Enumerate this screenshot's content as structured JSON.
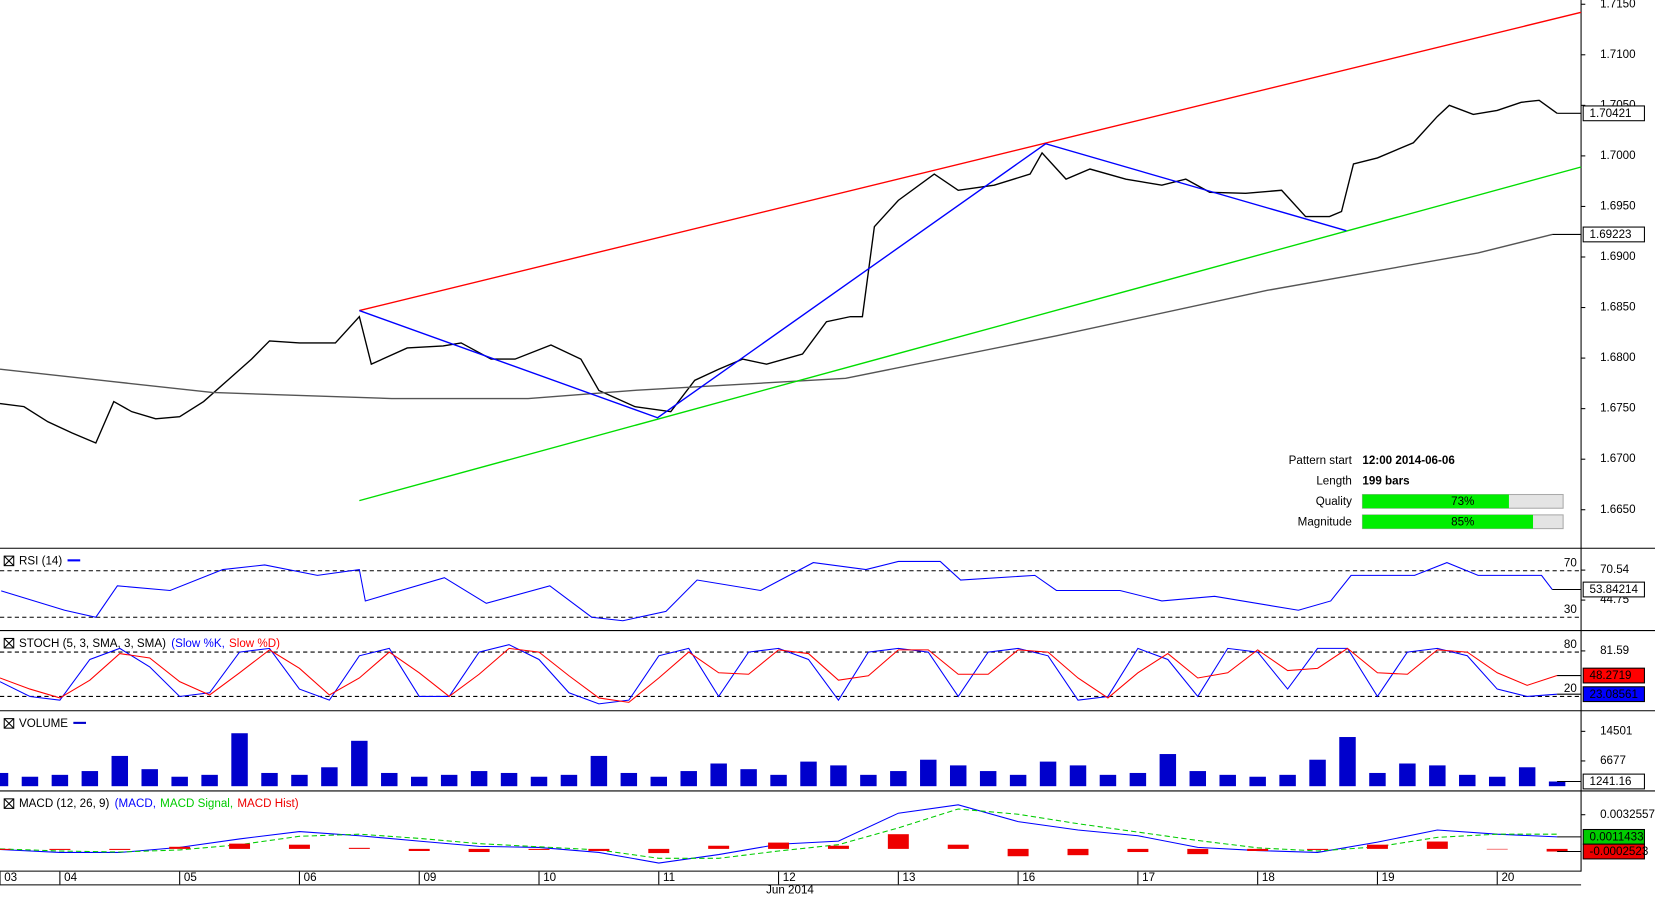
{
  "chart_data": [
    {
      "type": "line",
      "ylim": [
        1.66135,
        1.71542
      ],
      "yticks": [
        {
          "value": 1.665,
          "label": "1.6650"
        },
        {
          "value": 1.67,
          "label": "1.6700"
        },
        {
          "value": 1.675,
          "label": "1.6750"
        },
        {
          "value": 1.68,
          "label": "1.6800"
        },
        {
          "value": 1.685,
          "label": "1.6850"
        },
        {
          "value": 1.69,
          "label": "1.6900"
        },
        {
          "value": 1.695,
          "label": "1.6950"
        },
        {
          "value": 1.7,
          "label": "1.7000"
        },
        {
          "value": 1.705,
          "label": "1.7050"
        },
        {
          "value": 1.71,
          "label": "1.7100"
        },
        {
          "value": 1.715,
          "label": "1.7150"
        }
      ],
      "series": [
        {
          "color": "#000000",
          "style": "line",
          "show_last": "boxed",
          "x": [
            0.5,
            0.7,
            0.9,
            1.1,
            1.3,
            1.45,
            1.6,
            1.8,
            2.0,
            2.2,
            2.4,
            2.6,
            2.75,
            3.0,
            3.3,
            3.5,
            3.6,
            3.9,
            4.2,
            4.35,
            4.6,
            4.8,
            5.1,
            5.35,
            5.5,
            5.8,
            6.1,
            6.3,
            6.5,
            6.7,
            6.9,
            7.2,
            7.4,
            7.6,
            7.7,
            7.8,
            8.0,
            8.3,
            8.5,
            8.8,
            9.1,
            9.2,
            9.4,
            9.6,
            9.9,
            10.2,
            10.4,
            10.6,
            10.9,
            11.2,
            11.4,
            11.6,
            11.7,
            11.8,
            12.0,
            12.3,
            12.5,
            12.6,
            12.8,
            13.0,
            13.2,
            13.35,
            13.5
          ],
          "values": [
            1.6755,
            1.6752,
            1.6737,
            1.6726,
            1.6716,
            1.6757,
            1.6747,
            1.674,
            1.6742,
            1.6757,
            1.6778,
            1.6799,
            1.6817,
            1.6815,
            1.6815,
            1.6841,
            1.6794,
            1.681,
            1.6812,
            1.6815,
            1.6799,
            1.6799,
            1.6813,
            1.6799,
            1.6768,
            1.6752,
            1.6747,
            1.6778,
            1.6789,
            1.6799,
            1.6794,
            1.6804,
            1.6836,
            1.6841,
            1.6841,
            1.693,
            1.6956,
            1.6982,
            1.6966,
            1.6971,
            1.6982,
            1.7003,
            1.6977,
            1.6987,
            1.6977,
            1.6971,
            1.6977,
            1.6964,
            1.6963,
            1.6966,
            1.694,
            1.694,
            1.6945,
            1.6992,
            1.6998,
            1.7013,
            1.7039,
            1.705,
            1.7041,
            1.7045,
            1.7053,
            1.7055,
            1.70421
          ]
        },
        {
          "color": "#555555",
          "style": "line",
          "show_last": "boxed",
          "x": [
            0.5,
            2.27,
            3.77,
            4.91,
            5.79,
            7.56,
            9.32,
            11.08,
            12.84,
            13.46
          ],
          "values": [
            1.6789,
            1.6766,
            1.676,
            1.676,
            1.6768,
            1.678,
            1.6822,
            1.6867,
            1.6904,
            1.69223
          ]
        },
        {
          "color": "#ff0000",
          "style": "line",
          "x": [
            3.5,
            13.7
          ],
          "values": [
            1.6847,
            1.7142
          ]
        },
        {
          "color": "#00dd00",
          "style": "line",
          "x": [
            3.5,
            13.7
          ],
          "values": [
            1.6659,
            1.6989
          ]
        },
        {
          "color": "#0000ff",
          "style": "line",
          "x": [
            3.5,
            5.99,
            9.23,
            11.74
          ],
          "values": [
            1.6847,
            1.6741,
            1.7012,
            1.6926
          ]
        }
      ],
      "info": [
        {
          "label": "Pattern start",
          "value": "12:00 2014-06-06"
        },
        {
          "label": "Length",
          "value": "199 bars"
        },
        {
          "label": "Quality",
          "value": 73,
          "value_label": "73%"
        },
        {
          "label": "Magnitude",
          "value": 85,
          "value_label": "85%"
        }
      ]
    },
    {
      "type": "line",
      "title": "RSI (14)",
      "ylim": [
        19,
        88
      ],
      "yticks": [
        70.54,
        44.75
      ],
      "levels": [
        70,
        30
      ],
      "series": [
        {
          "color": "#0000ff",
          "style": "line",
          "show_last": "boxed",
          "x": [
            0.51,
            1.04,
            1.3,
            1.48,
            1.92,
            2.36,
            2.71,
            3.15,
            3.5,
            3.55,
            4.21,
            4.56,
            5.09,
            5.44,
            5.7,
            6.06,
            6.32,
            6.85,
            7.29,
            7.73,
            8.0,
            8.35,
            8.52,
            9.14,
            9.32,
            9.85,
            10.2,
            10.64,
            11.34,
            11.61,
            11.78,
            12.31,
            12.58,
            12.84,
            13.37,
            13.46
          ],
          "values": [
            52.7,
            36,
            30,
            57,
            53,
            71,
            75,
            66,
            71,
            44,
            64,
            42,
            57,
            30,
            27,
            35,
            62,
            53,
            77,
            71,
            78,
            78,
            62,
            66,
            53,
            53,
            44,
            48,
            36,
            44,
            66,
            66,
            77,
            66,
            66,
            53.84214
          ]
        }
      ]
    },
    {
      "type": "line",
      "title": "STOCH (5, 3, SMA, 3, SMA)",
      "ylim": [
        1.4,
        107
      ],
      "yticks": [
        81.59
      ],
      "levels": [
        80,
        20
      ],
      "x": [
        0.5,
        0.75,
        1,
        1.25,
        1.5,
        1.75,
        2,
        2.25,
        2.5,
        2.75,
        3,
        3.25,
        3.5,
        3.75,
        4,
        4.25,
        4.5,
        4.75,
        5,
        5.25,
        5.5,
        5.75,
        6,
        6.25,
        6.5,
        6.75,
        7,
        7.25,
        7.5,
        7.75,
        8,
        8.25,
        8.5,
        8.75,
        9,
        9.25,
        9.5,
        9.75,
        10,
        10.25,
        10.5,
        10.75,
        11,
        11.25,
        11.5,
        11.75,
        12,
        12.25,
        12.5,
        12.75,
        13,
        13.25,
        13.5
      ],
      "series": [
        {
          "name": "(Slow %K,",
          "color": "#0000ff",
          "style": "line",
          "show_last": "filled",
          "values": [
            40,
            20,
            15,
            70,
            85,
            60,
            20,
            25,
            80,
            85,
            30,
            15,
            75,
            85,
            20,
            20,
            80,
            90,
            70,
            25,
            10,
            15,
            75,
            85,
            20,
            80,
            85,
            70,
            15,
            80,
            85,
            80,
            20,
            80,
            85,
            75,
            15,
            20,
            85,
            70,
            20,
            85,
            80,
            30,
            85,
            85,
            20,
            80,
            85,
            75,
            30,
            20,
            23.08561
          ]
        },
        {
          "name": "Slow %D)",
          "color": "#ff0000",
          "style": "line",
          "show_last": "filled",
          "values": [
            45,
            30,
            18,
            42,
            78,
            72,
            40,
            22,
            52,
            83,
            58,
            22,
            45,
            80,
            52,
            20,
            50,
            85,
            80,
            48,
            18,
            12,
            45,
            80,
            52,
            50,
            83,
            78,
            42,
            48,
            83,
            83,
            50,
            50,
            83,
            80,
            45,
            18,
            52,
            78,
            45,
            52,
            83,
            55,
            58,
            85,
            52,
            50,
            83,
            80,
            52,
            35,
            48.2719
          ]
        }
      ]
    },
    {
      "type": "bar",
      "title": "VOLUME",
      "ylim": [
        0,
        19530
      ],
      "yticks": [
        14501,
        6677
      ],
      "x": [
        0.5,
        0.75,
        1,
        1.25,
        1.5,
        1.75,
        2,
        2.25,
        2.5,
        2.75,
        3,
        3.25,
        3.5,
        3.75,
        4,
        4.25,
        4.5,
        4.75,
        5,
        5.25,
        5.5,
        5.75,
        6,
        6.25,
        6.5,
        6.75,
        7,
        7.25,
        7.5,
        7.75,
        8,
        8.25,
        8.5,
        8.75,
        9,
        9.25,
        9.5,
        9.75,
        10,
        10.25,
        10.5,
        10.75,
        11,
        11.25,
        11.5,
        11.75,
        12,
        12.25,
        12.5,
        12.75,
        13,
        13.25,
        13.5
      ],
      "series": [
        {
          "color": "#0000cc",
          "show_last": "boxed",
          "values": [
            3500,
            2500,
            3000,
            4000,
            8000,
            4500,
            2500,
            3000,
            14000,
            3500,
            3000,
            5000,
            12000,
            3500,
            2500,
            3000,
            4000,
            3500,
            2500,
            3000,
            8000,
            3500,
            2500,
            4000,
            6000,
            4500,
            3000,
            6500,
            5500,
            3000,
            4000,
            7000,
            5500,
            4000,
            3000,
            6500,
            5500,
            3000,
            3500,
            8500,
            4000,
            3000,
            2500,
            3000,
            7000,
            13000,
            3500,
            6000,
            5500,
            3000,
            2500,
            5000,
            1241.16
          ]
        }
      ]
    },
    {
      "type": "line",
      "title": "MACD (12, 26, 9)",
      "ylim": [
        -0.00197,
        0.00537
      ],
      "yticks": [
        0.0032557
      ],
      "x": [
        0.5,
        1,
        1.5,
        2,
        2.5,
        3,
        3.5,
        4,
        4.5,
        5,
        5.5,
        6,
        6.5,
        7,
        7.5,
        8,
        8.5,
        9,
        9.5,
        10,
        10.5,
        11,
        11.5,
        12,
        12.5,
        13,
        13.5
      ],
      "series": [
        {
          "name": "(MACD,",
          "color": "#0000ff",
          "style": "line",
          "show_last": "filled",
          "last_color": "#00cc00",
          "values": [
            -6e-05,
            -0.00034,
            -0.00034,
            0.00014,
            0.00095,
            0.00165,
            0.00125,
            0.00074,
            0.00024,
            0.00014,
            -0.00034,
            -0.00135,
            -0.00054,
            0.00044,
            0.00074,
            0.0034,
            0.0042,
            0.0026,
            0.0018,
            0.00125,
            0.00014,
            -0.00016,
            -0.00034,
            0.00064,
            0.0018,
            0.0014,
            0.0011433
          ]
        },
        {
          "name": "MACD Signal,",
          "color": "#00cc00",
          "style": "dashed",
          "values": [
            0,
            -0.0002,
            -0.0003,
            -0.0001,
            0.0004,
            0.0012,
            0.0014,
            0.001,
            0.0005,
            0.0002,
            -0.0001,
            -0.0009,
            -0.0009,
            -0.0002,
            0.0004,
            0.002,
            0.0038,
            0.0033,
            0.0024,
            0.0016,
            0.0008,
            0.0001,
            -0.0002,
            0.0002,
            0.0011,
            0.0014,
            0.0014
          ]
        },
        {
          "name": "MACD Hist)",
          "color": "#ee0000",
          "style": "bar",
          "show_last": "filled",
          "values": [
            -0.0001,
            -0.0001,
            -0.0001,
            0.0002,
            0.0005,
            0.0004,
            0.0001,
            -0.0002,
            -0.0003,
            -0.0001,
            -0.0002,
            -0.0004,
            0.0003,
            0.0006,
            0.0003,
            0.0014,
            0.0004,
            -0.0007,
            -0.0006,
            -0.0003,
            -0.0005,
            -0.0002,
            -0.0001,
            0.0004,
            0.0007,
            0,
            -0.0002523
          ]
        }
      ],
      "xlim": [
        0.5,
        13.7
      ],
      "xticks": [
        {
          "value": 0.5,
          "label": "03"
        },
        {
          "value": 1,
          "label": "04"
        },
        {
          "value": 2,
          "label": "05"
        },
        {
          "value": 3,
          "label": "06"
        },
        {
          "value": 4,
          "label": "09"
        },
        {
          "value": 5,
          "label": "10"
        },
        {
          "value": 6,
          "label": "11"
        },
        {
          "value": 7,
          "label": "12"
        },
        {
          "value": 8,
          "label": "13"
        },
        {
          "value": 9,
          "label": "16"
        },
        {
          "value": 10,
          "label": "17"
        },
        {
          "value": 11,
          "label": "18"
        },
        {
          "value": 12,
          "label": "19"
        },
        {
          "value": 13,
          "label": "20"
        }
      ],
      "xlabel": "Jun 2014"
    }
  ]
}
